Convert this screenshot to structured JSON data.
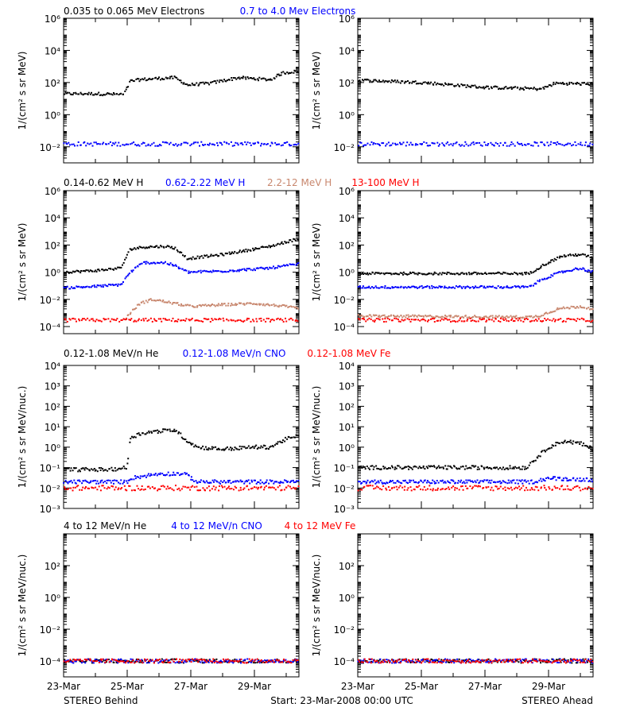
{
  "legend_rows": [
    [
      {
        "text": "0.035 to 0.065 MeV Electrons",
        "color": "#000000"
      },
      {
        "text": "0.7 to 4.0 Mev Electrons",
        "color": "#0000ff"
      }
    ],
    [
      {
        "text": "0.14-0.62 MeV H",
        "color": "#000000"
      },
      {
        "text": "0.62-2.22 MeV H",
        "color": "#0000ff"
      },
      {
        "text": "2.2-12 MeV H",
        "color": "#c8876e"
      },
      {
        "text": "13-100 MeV H",
        "color": "#ff0000"
      }
    ],
    [
      {
        "text": "0.12-1.08 MeV/n He",
        "color": "#000000"
      },
      {
        "text": "0.12-1.08 MeV/n CNO",
        "color": "#0000ff"
      },
      {
        "text": "0.12-1.08 MeV Fe",
        "color": "#ff0000"
      }
    ],
    [
      {
        "text": "4 to 12 MeV/n He",
        "color": "#000000"
      },
      {
        "text": "4 to 12 MeV/n CNO",
        "color": "#0000ff"
      },
      {
        "text": "4 to 12 MeV Fe",
        "color": "#ff0000"
      }
    ]
  ],
  "ylabel_a": "1/(cm² s sr MeV)",
  "ylabel_b": "1/(cm² s sr MeV/nuc.)",
  "bottom": {
    "left": "STEREO Behind",
    "center": "Start: 23-Mar-2008 00:00 UTC",
    "right": "STEREO Ahead"
  },
  "x_ticks": [
    {
      "day": 0,
      "label": "23-Mar"
    },
    {
      "day": 2,
      "label": "25-Mar"
    },
    {
      "day": 4,
      "label": "27-Mar"
    },
    {
      "day": 6,
      "label": "29-Mar"
    }
  ],
  "chart_data": [
    {
      "type": "scatter",
      "spacecraft": "STEREO Behind",
      "panel": "electrons",
      "y_scale": "log",
      "ylim": [
        0.001,
        1000000
      ],
      "xlim_days": [
        0,
        7.4
      ],
      "y_ticks": [
        0.01,
        1,
        100,
        10000,
        1000000
      ],
      "series": [
        {
          "name": "0.035 to 0.065 MeV Electrons",
          "color": "#000000",
          "x": [
            0,
            1,
            1.9,
            2.1,
            2.4,
            3,
            3.5,
            3.9,
            4.6,
            5.5,
            6.5,
            6.9,
            7.4
          ],
          "y": [
            20,
            20,
            18,
            120,
            150,
            180,
            200,
            70,
            90,
            200,
            150,
            400,
            500
          ]
        },
        {
          "name": "0.7 to 4.0 Mev Electrons",
          "color": "#0000ff",
          "x": [
            0,
            7.4
          ],
          "y": [
            0.015,
            0.015
          ]
        }
      ]
    },
    {
      "type": "scatter",
      "spacecraft": "STEREO Ahead",
      "panel": "electrons",
      "y_scale": "log",
      "ylim": [
        0.001,
        1000000
      ],
      "xlim_days": [
        0,
        7.4
      ],
      "y_ticks": [
        0.01,
        1,
        100,
        10000,
        1000000
      ],
      "series": [
        {
          "name": "0.035 to 0.065 MeV Electrons",
          "color": "#000000",
          "x": [
            0,
            2,
            4,
            5.8,
            6.2,
            7.4
          ],
          "y": [
            140,
            100,
            50,
            40,
            90,
            80
          ]
        },
        {
          "name": "0.7 to 4.0 Mev Electrons",
          "color": "#0000ff",
          "x": [
            0,
            7.4
          ],
          "y": [
            0.015,
            0.015
          ]
        }
      ]
    },
    {
      "type": "scatter",
      "spacecraft": "STEREO Behind",
      "panel": "protons",
      "y_scale": "log",
      "ylim": [
        3e-05,
        1000000
      ],
      "xlim_days": [
        0,
        7.4
      ],
      "y_ticks": [
        0.0001,
        0.01,
        1,
        100,
        10000,
        1000000
      ],
      "series": [
        {
          "name": "0.14-0.62 MeV H",
          "color": "#000000",
          "x": [
            0,
            1,
            1.8,
            2.1,
            2.5,
            3.2,
            3.5,
            3.9,
            5,
            6.5,
            7.4
          ],
          "y": [
            1,
            1.3,
            2,
            50,
            70,
            80,
            60,
            10,
            20,
            80,
            300
          ]
        },
        {
          "name": "0.62-2.22 MeV H",
          "color": "#0000ff",
          "x": [
            0,
            1,
            1.8,
            2.1,
            2.5,
            3.2,
            3.5,
            3.9,
            5,
            6.5,
            7.4
          ],
          "y": [
            0.07,
            0.09,
            0.12,
            1,
            5,
            5,
            3,
            1,
            1.2,
            2,
            4
          ]
        },
        {
          "name": "2.2-12 MeV H",
          "color": "#c8876e",
          "x": [
            1.9,
            2.1,
            2.4,
            2.8,
            3.5,
            4,
            5,
            6,
            7,
            7.4
          ],
          "y": [
            0.0003,
            0.001,
            0.005,
            0.01,
            0.005,
            0.003,
            0.004,
            0.005,
            0.003,
            0.002
          ]
        },
        {
          "name": "13-100 MeV H",
          "color": "#ff0000",
          "x": [
            0,
            7.4
          ],
          "y": [
            0.0003,
            0.0003
          ]
        }
      ]
    },
    {
      "type": "scatter",
      "spacecraft": "STEREO Ahead",
      "panel": "protons",
      "y_scale": "log",
      "ylim": [
        3e-05,
        1000000
      ],
      "xlim_days": [
        0,
        7.4
      ],
      "y_ticks": [
        0.0001,
        0.01,
        1,
        100,
        10000,
        1000000
      ],
      "series": [
        {
          "name": "0.14-0.62 MeV H",
          "color": "#000000",
          "x": [
            0,
            5.4,
            5.8,
            6.4,
            7,
            7.4
          ],
          "y": [
            0.8,
            0.8,
            3,
            15,
            20,
            12
          ]
        },
        {
          "name": "0.62-2.22 MeV H",
          "color": "#0000ff",
          "x": [
            0,
            5.4,
            5.8,
            6.4,
            7,
            7.4
          ],
          "y": [
            0.08,
            0.08,
            0.3,
            1,
            2,
            1
          ]
        },
        {
          "name": "2.2-12 MeV H",
          "color": "#c8876e",
          "x": [
            0,
            5.4,
            5.7,
            6.3,
            7,
            7.4
          ],
          "y": [
            0.0006,
            0.0005,
            0.0006,
            0.002,
            0.003,
            0.002
          ]
        },
        {
          "name": "13-100 MeV H",
          "color": "#ff0000",
          "x": [
            0,
            7.4
          ],
          "y": [
            0.0003,
            0.0003
          ]
        }
      ]
    },
    {
      "type": "scatter",
      "spacecraft": "STEREO Behind",
      "panel": "suprathermal ions",
      "y_scale": "log",
      "ylim": [
        0.001,
        10000
      ],
      "xlim_days": [
        0,
        7.4
      ],
      "y_ticks": [
        0.001,
        0.01,
        0.1,
        1,
        10,
        100,
        1000,
        10000
      ],
      "series": [
        {
          "name": "0.12-1.08 MeV/n He",
          "color": "#000000",
          "x": [
            0,
            1.5,
            2,
            2.1,
            2.5,
            3,
            3.5,
            3.9,
            4.2,
            5,
            6,
            6.5,
            7,
            7.4
          ],
          "y": [
            0.08,
            0.08,
            0.1,
            3,
            5,
            6,
            7,
            2,
            1,
            0.8,
            1,
            1,
            2.5,
            3.5
          ]
        },
        {
          "name": "0.12-1.08 MeV/n CNO",
          "color": "#0000ff",
          "x": [
            0,
            2,
            2.1,
            3,
            3.8,
            4.2,
            7.4
          ],
          "y": [
            0.02,
            0.02,
            0.03,
            0.05,
            0.05,
            0.02,
            0.02
          ]
        },
        {
          "name": "0.12-1.08 MeV Fe",
          "color": "#ff0000",
          "x": [
            0,
            7.4
          ],
          "y": [
            0.01,
            0.01
          ]
        }
      ]
    },
    {
      "type": "scatter",
      "spacecraft": "STEREO Ahead",
      "panel": "suprathermal ions",
      "y_scale": "log",
      "ylim": [
        0.001,
        10000
      ],
      "xlim_days": [
        0,
        7.4
      ],
      "y_ticks": [
        0.001,
        0.01,
        0.1,
        1,
        10,
        100,
        1000,
        10000
      ],
      "series": [
        {
          "name": "0.12-1.08 MeV/n He",
          "color": "#000000",
          "x": [
            0,
            5.3,
            5.5,
            6,
            6.5,
            7,
            7.4
          ],
          "y": [
            0.1,
            0.1,
            0.2,
            1,
            2,
            1.5,
            0.8
          ]
        },
        {
          "name": "0.12-1.08 MeV/n CNO",
          "color": "#0000ff",
          "x": [
            0,
            5.5,
            6,
            7.4
          ],
          "y": [
            0.02,
            0.02,
            0.03,
            0.025
          ]
        },
        {
          "name": "0.12-1.08 MeV Fe",
          "color": "#ff0000",
          "x": [
            0,
            7.4
          ],
          "y": [
            0.01,
            0.01
          ]
        }
      ]
    },
    {
      "type": "scatter",
      "spacecraft": "STEREO Behind",
      "panel": "energetic ions",
      "y_scale": "log",
      "ylim": [
        1e-05,
        10000
      ],
      "xlim_days": [
        0,
        7.4
      ],
      "y_ticks": [
        0.0001,
        0.01,
        1,
        100
      ],
      "series": [
        {
          "name": "4 to 12 MeV/n He",
          "color": "#000000",
          "x": [
            0,
            7.4
          ],
          "y": [
            0.0001,
            0.0001
          ]
        },
        {
          "name": "4 to 12 MeV/n CNO",
          "color": "#0000ff",
          "x": [
            0,
            7.4
          ],
          "y": [
            0.0001,
            0.0001
          ]
        },
        {
          "name": "4 to 12 MeV Fe",
          "color": "#ff0000",
          "x": [
            0,
            7.4
          ],
          "y": [
            0.0001,
            0.0001
          ]
        }
      ]
    },
    {
      "type": "scatter",
      "spacecraft": "STEREO Ahead",
      "panel": "energetic ions",
      "y_scale": "log",
      "ylim": [
        1e-05,
        10000
      ],
      "xlim_days": [
        0,
        7.4
      ],
      "y_ticks": [
        0.0001,
        0.01,
        1,
        100
      ],
      "series": [
        {
          "name": "4 to 12 MeV/n He",
          "color": "#000000",
          "x": [
            0,
            7.4
          ],
          "y": [
            0.0001,
            0.0001
          ]
        },
        {
          "name": "4 to 12 MeV/n CNO",
          "color": "#0000ff",
          "x": [
            0,
            7.4
          ],
          "y": [
            0.0001,
            0.0001
          ]
        },
        {
          "name": "4 to 12 MeV Fe",
          "color": "#ff0000",
          "x": [
            0,
            7.4
          ],
          "y": [
            0.0001,
            0.0001
          ]
        }
      ]
    }
  ]
}
